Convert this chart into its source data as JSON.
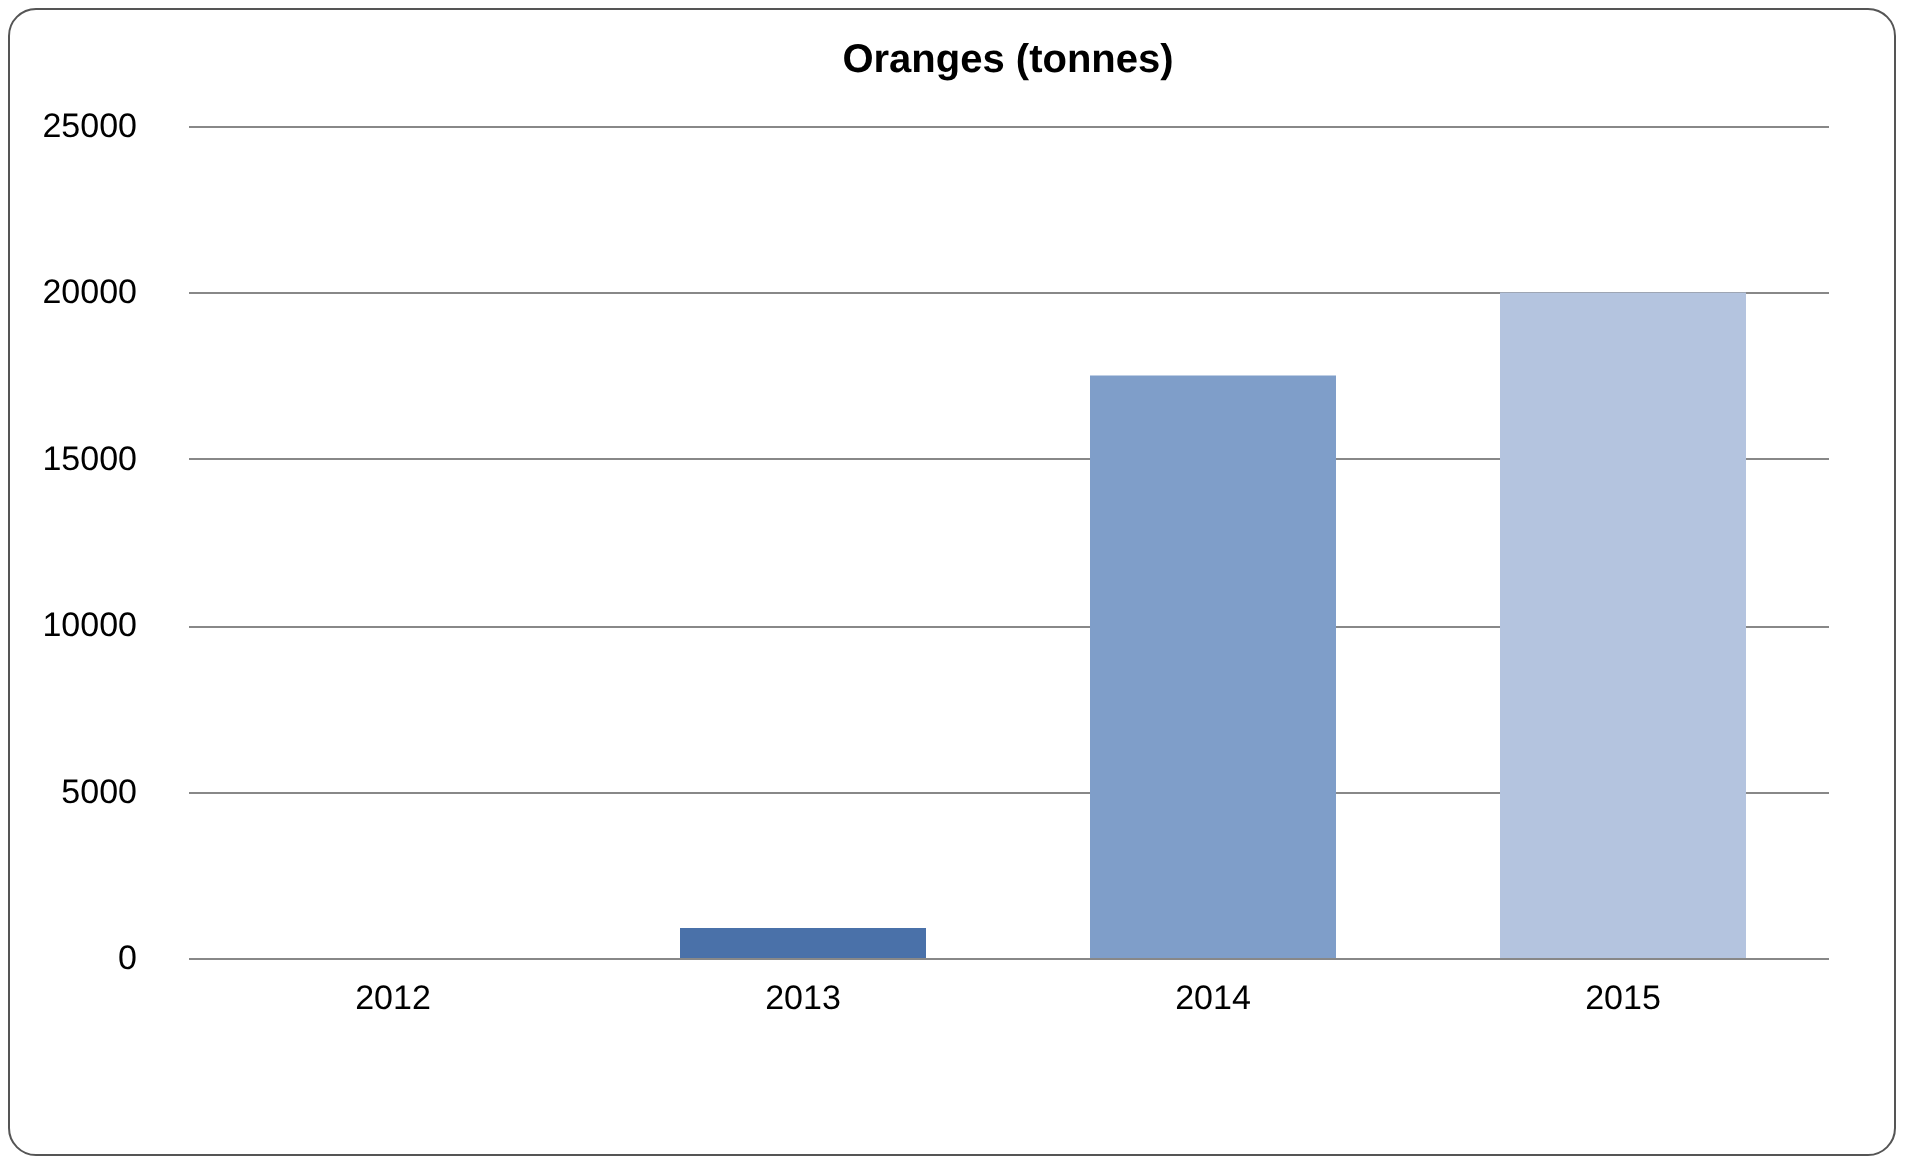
{
  "chart_data": {
    "type": "bar",
    "title": "Oranges (tonnes)",
    "categories": [
      "2012",
      "2013",
      "2014",
      "2015"
    ],
    "values": [
      0,
      900,
      17500,
      20000
    ],
    "colors": [
      "#2f4f80",
      "#4a71a9",
      "#7f9ec9",
      "#b4c4df"
    ],
    "ylim": [
      0,
      25000
    ],
    "yticks": [
      0,
      5000,
      10000,
      15000,
      20000,
      25000
    ],
    "grid": "y",
    "legend": false
  }
}
